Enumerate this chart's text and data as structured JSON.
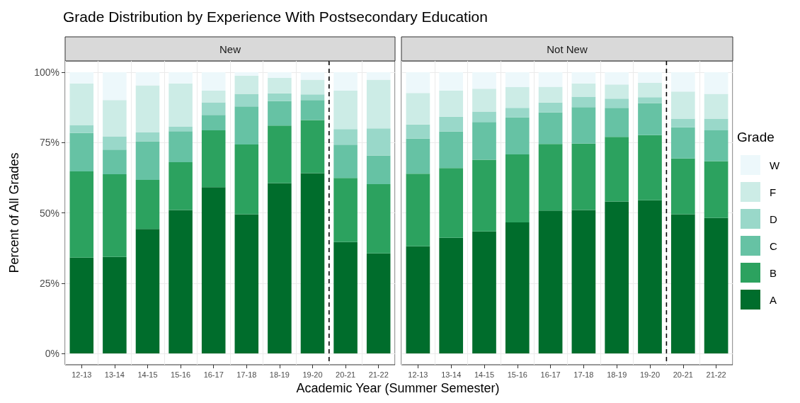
{
  "chart_data": [
    {
      "type": "bar",
      "stacked": true,
      "title": "Grade Distribution by Experience With Postsecondary Education",
      "subtitle": "New",
      "xlabel": "Academic Year (Summer Semester)",
      "ylabel": "Percent of All Grades",
      "categories": [
        "12-13",
        "13-14",
        "14-15",
        "15-16",
        "16-17",
        "17-18",
        "18-19",
        "19-20",
        "20-21",
        "21-22"
      ],
      "series": [
        {
          "color": "#006d2c",
          "values": [
            34.1,
            34.3,
            44.3,
            51,
            59.1,
            49.5,
            60.6,
            64.1,
            39.6,
            35.6
          ]
        },
        {
          "color": "#2ca25f",
          "values": [
            30.6,
            29.4,
            17.4,
            17,
            20.2,
            24.8,
            20.4,
            18.9,
            22.8,
            24.6
          ]
        },
        {
          "color": "#66c2a4",
          "values": [
            13.7,
            8.8,
            13.7,
            11,
            5.5,
            13.5,
            8.7,
            7.1,
            11.8,
            10.2
          ]
        },
        {
          "color": "#99d8c9",
          "values": [
            2.8,
            4.7,
            3.2,
            1.7,
            4.5,
            4.5,
            2.8,
            2,
            5.6,
            9.6
          ]
        },
        {
          "color": "#ccece6",
          "values": [
            14.8,
            12.9,
            16.7,
            15.3,
            4.1,
            6.5,
            5.5,
            5.2,
            13.6,
            17.3
          ]
        },
        {
          "color": "#edf8fb",
          "values": [
            4,
            9.9,
            4.7,
            4,
            6.6,
            1.2,
            2,
            2.7,
            6.6,
            2.7
          ]
        }
      ],
      "ylim": [
        -4,
        104
      ],
      "yticks": [
        {
          "value": 0,
          "label": "0%"
        },
        {
          "value": 25,
          "label": "25%"
        },
        {
          "value": 50,
          "label": "50%"
        },
        {
          "value": 75,
          "label": "75%"
        },
        {
          "value": 100,
          "label": "100%"
        }
      ],
      "ref_lines": [
        {
          "axis": "x",
          "value": "20-21",
          "line_style": "dashed",
          "color": "#000000"
        }
      ],
      "grid": true,
      "legend": false
    },
    {
      "type": "bar",
      "stacked": true,
      "subtitle": "Not New",
      "legend_title": "Grade",
      "categories": [
        "12-13",
        "13-14",
        "14-15",
        "15-16",
        "16-17",
        "17-18",
        "18-19",
        "19-20",
        "20-21",
        "21-22"
      ],
      "series": [
        {
          "name": "A",
          "color": "#006d2c",
          "values": [
            38.1,
            41.1,
            43.4,
            46.6,
            50.8,
            51,
            54,
            54.5,
            49.5,
            48.2
          ]
        },
        {
          "name": "B",
          "color": "#2ca25f",
          "values": [
            25.8,
            24.8,
            25.5,
            24.2,
            23.7,
            23.6,
            23,
            23.1,
            19.8,
            20.2
          ]
        },
        {
          "name": "C",
          "color": "#66c2a4",
          "values": [
            12.5,
            13,
            13.4,
            13.1,
            11.2,
            13,
            10.3,
            11.4,
            11.1,
            10.9
          ]
        },
        {
          "name": "D",
          "color": "#99d8c9",
          "values": [
            5,
            5.3,
            3.7,
            3.4,
            3.5,
            3.7,
            3.3,
            2.1,
            3.1,
            4.2
          ]
        },
        {
          "name": "F",
          "color": "#ccece6",
          "values": [
            11.2,
            9.3,
            8.1,
            7.4,
            5.6,
            4.7,
            5,
            5.1,
            9.6,
            8.8
          ]
        },
        {
          "name": "W",
          "color": "#edf8fb",
          "values": [
            7.4,
            6.5,
            5.9,
            5.3,
            5.2,
            4,
            4.4,
            3.8,
            6.9,
            7.7
          ]
        }
      ],
      "ylim": [
        -4,
        104
      ],
      "yticks": [
        0,
        25,
        50,
        75,
        100
      ],
      "ref_lines": [
        {
          "axis": "x",
          "value": "20-21",
          "line_style": "dashed",
          "color": "#000000"
        }
      ],
      "grid": true,
      "legend": "right",
      "tick_labels": "x"
    }
  ]
}
